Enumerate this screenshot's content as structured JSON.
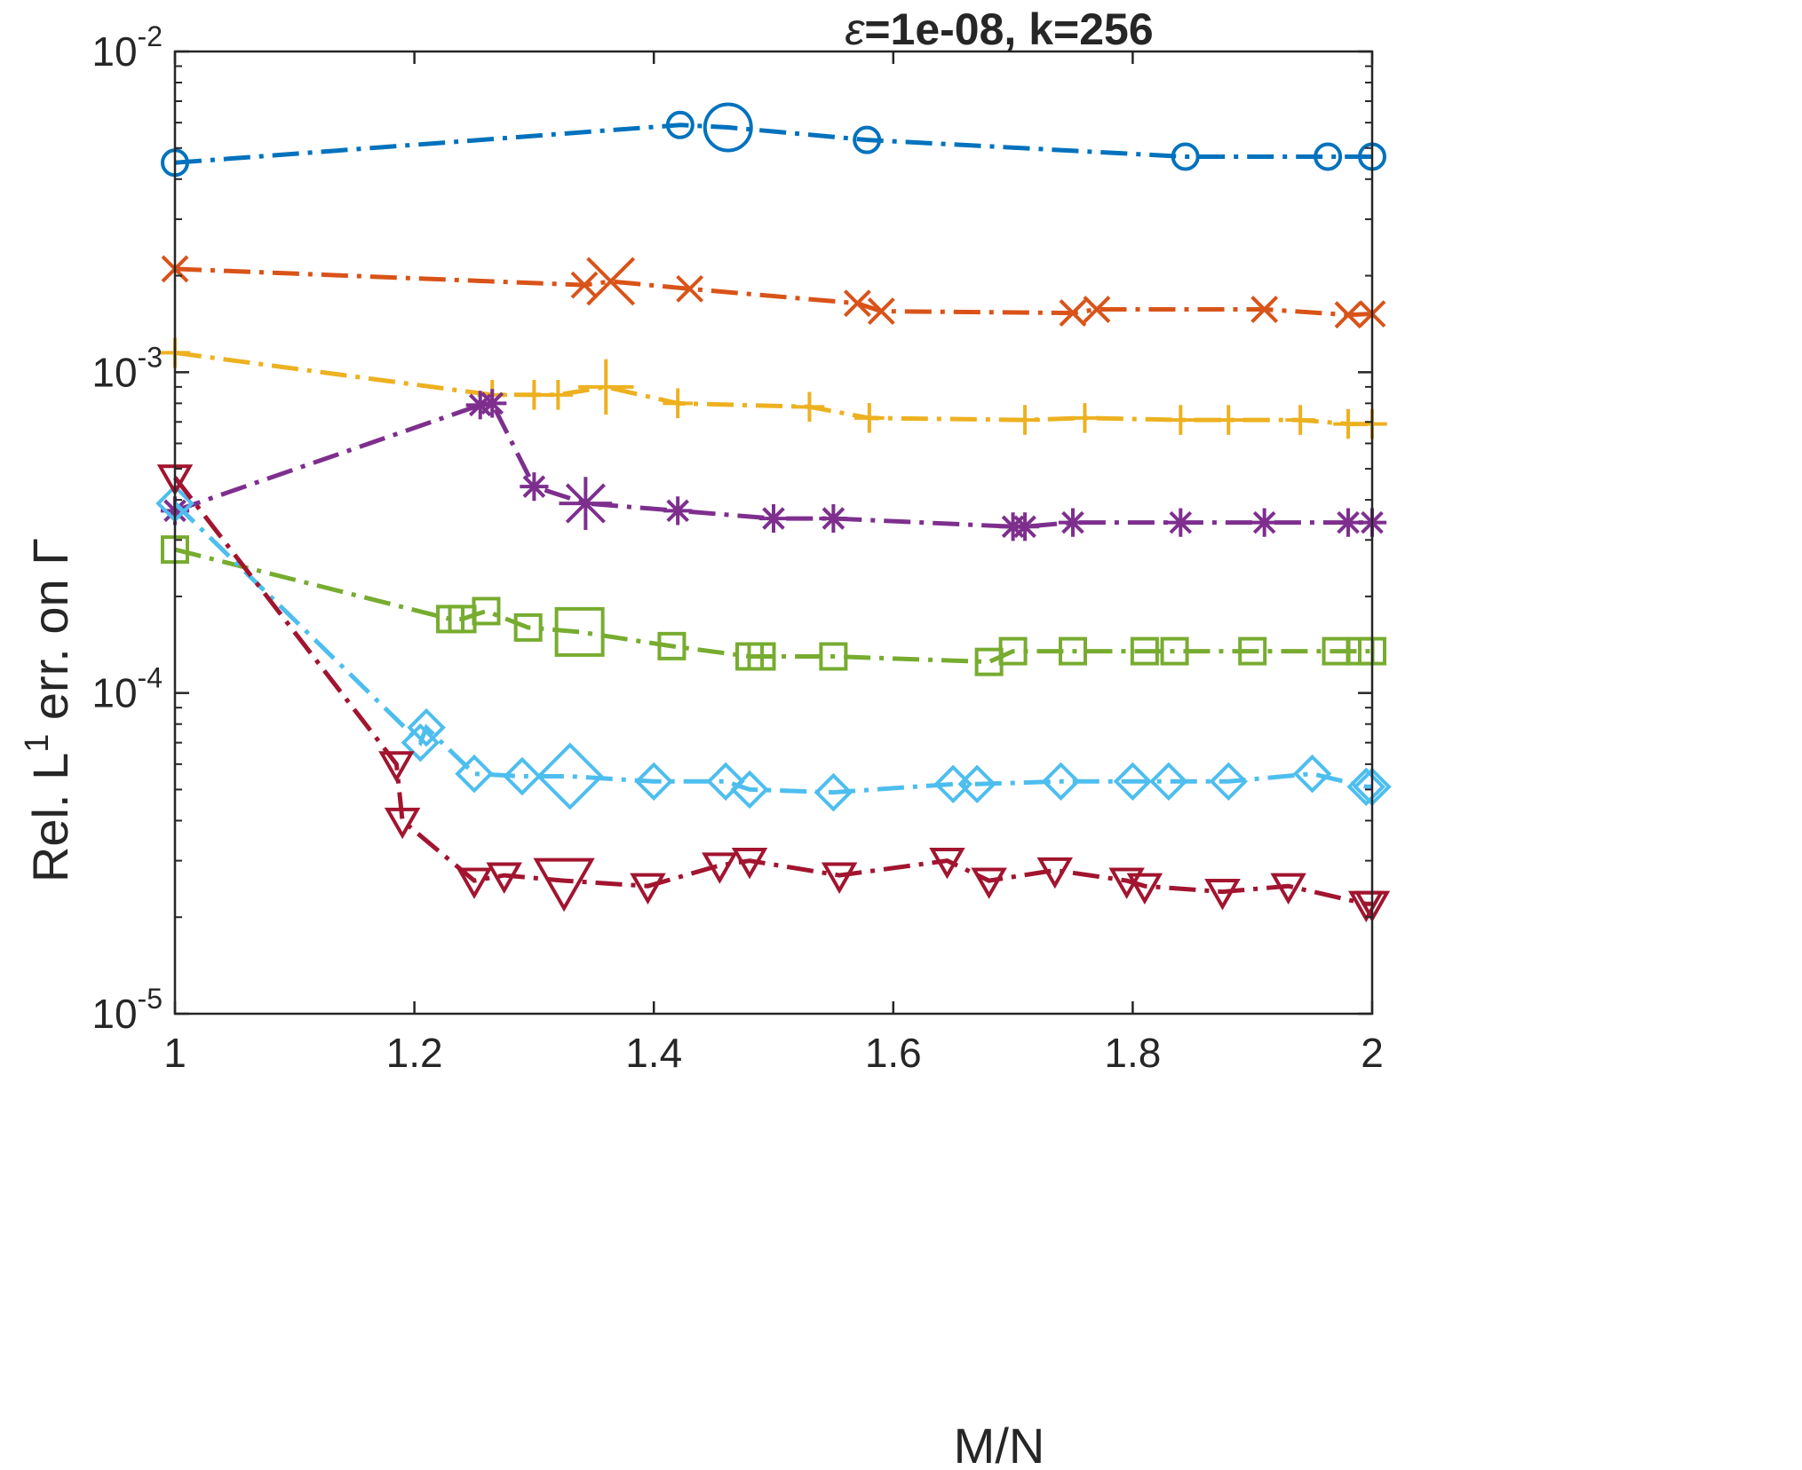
{
  "chart_data": {
    "type": "line",
    "title_symbol": "ε",
    "title_rest": "=1e-08, k=256",
    "xlabel": "M/N",
    "ylabel_prefix": "Rel. L",
    "ylabel_sup": "1",
    "ylabel_suffix": " err. on Γ",
    "xscale": "linear",
    "yscale": "log",
    "xlim": [
      1,
      2
    ],
    "ylim": [
      1e-05,
      0.01
    ],
    "grid": false,
    "x_ticks": [
      1,
      1.2,
      1.4,
      1.6,
      1.8,
      2
    ],
    "x_tick_labels": [
      "1",
      "1.2",
      "1.4",
      "1.6",
      "1.8",
      "2"
    ],
    "y_ticks": [
      {
        "value": 1e-05,
        "base": "10",
        "exp": "-5"
      },
      {
        "value": 0.0001,
        "base": "10",
        "exp": "-4"
      },
      {
        "value": 0.001,
        "base": "10",
        "exp": "-3"
      },
      {
        "value": 0.01,
        "base": "10",
        "exp": "-2"
      }
    ],
    "series": [
      {
        "name": "series-blue-circle",
        "color": "#0072BD",
        "marker": "circle",
        "x": [
          1.0,
          1.422,
          1.462,
          1.578,
          1.844,
          1.963,
          2.0
        ],
        "y": [
          0.0045,
          0.0059,
          0.0058,
          0.0053,
          0.0047,
          0.0047,
          0.0047
        ],
        "highlight_index": 2
      },
      {
        "name": "series-orange-x",
        "color": "#D95319",
        "marker": "x",
        "x": [
          1.0,
          1.342,
          1.364,
          1.43,
          1.57,
          1.59,
          1.75,
          1.77,
          1.91,
          1.98,
          2.0
        ],
        "y": [
          0.0021,
          0.00187,
          0.00192,
          0.00182,
          0.00164,
          0.00155,
          0.00153,
          0.00157,
          0.00157,
          0.00151,
          0.00152
        ],
        "highlight_index": 2
      },
      {
        "name": "series-yellow-plus",
        "color": "#EDB120",
        "marker": "plus",
        "x": [
          1.0,
          1.265,
          1.3,
          1.32,
          1.36,
          1.42,
          1.53,
          1.58,
          1.71,
          1.76,
          1.84,
          1.88,
          1.94,
          1.98,
          2.0
        ],
        "y": [
          0.00115,
          0.00085,
          0.00085,
          0.00085,
          0.0009,
          0.0008,
          0.00078,
          0.00072,
          0.00071,
          0.00072,
          0.00071,
          0.00071,
          0.00071,
          0.00069,
          0.00069
        ],
        "highlight_index": 4
      },
      {
        "name": "series-purple-star",
        "color": "#7E2F8E",
        "marker": "star",
        "x": [
          1.0,
          1.255,
          1.265,
          1.3,
          1.343,
          1.42,
          1.5,
          1.55,
          1.7,
          1.71,
          1.75,
          1.84,
          1.91,
          1.98,
          2.0
        ],
        "y": [
          0.00037,
          0.00079,
          0.0008,
          0.00044,
          0.00039,
          0.00037,
          0.00035,
          0.00035,
          0.00033,
          0.00033,
          0.00034,
          0.00034,
          0.00034,
          0.00034,
          0.00034
        ],
        "highlight_index": 4
      },
      {
        "name": "series-green-square",
        "color": "#77AC30",
        "marker": "square",
        "x": [
          1.0,
          1.23,
          1.24,
          1.26,
          1.295,
          1.338,
          1.415,
          1.48,
          1.49,
          1.55,
          1.68,
          1.7,
          1.75,
          1.81,
          1.835,
          1.9,
          1.97,
          1.99,
          2.0
        ],
        "y": [
          0.00028,
          0.00017,
          0.00017,
          0.00018,
          0.00016,
          0.000155,
          0.00014,
          0.00013,
          0.00013,
          0.00013,
          0.000125,
          0.000135,
          0.000135,
          0.000135,
          0.000135,
          0.000135,
          0.000135,
          0.000135,
          0.000135
        ],
        "highlight_index": 5
      },
      {
        "name": "series-cyan-diamond",
        "color": "#4DBEEE",
        "marker": "diamond",
        "x": [
          1.0,
          1.205,
          1.21,
          1.25,
          1.29,
          1.33,
          1.4,
          1.46,
          1.48,
          1.55,
          1.65,
          1.67,
          1.74,
          1.8,
          1.83,
          1.88,
          1.95,
          1.995,
          2.0
        ],
        "y": [
          0.00039,
          7e-05,
          7.8e-05,
          5.6e-05,
          5.5e-05,
          5.5e-05,
          5.3e-05,
          5.3e-05,
          5e-05,
          4.9e-05,
          5.2e-05,
          5.2e-05,
          5.3e-05,
          5.3e-05,
          5.3e-05,
          5.3e-05,
          5.6e-05,
          5.1e-05,
          5.1e-05
        ],
        "highlight_index": 5
      },
      {
        "name": "series-red-triangle",
        "color": "#A2142F",
        "marker": "triangle-down",
        "x": [
          1.0,
          1.185,
          1.19,
          1.25,
          1.275,
          1.325,
          1.395,
          1.455,
          1.48,
          1.555,
          1.645,
          1.68,
          1.735,
          1.795,
          1.81,
          1.875,
          1.93,
          1.995,
          2.0
        ],
        "y": [
          0.00047,
          6e-05,
          4e-05,
          2.6e-05,
          2.7e-05,
          2.6e-05,
          2.5e-05,
          2.9e-05,
          3e-05,
          2.7e-05,
          3e-05,
          2.6e-05,
          2.8e-05,
          2.6e-05,
          2.5e-05,
          2.4e-05,
          2.5e-05,
          2.2e-05,
          2.2e-05
        ],
        "highlight_index": 5
      }
    ]
  }
}
